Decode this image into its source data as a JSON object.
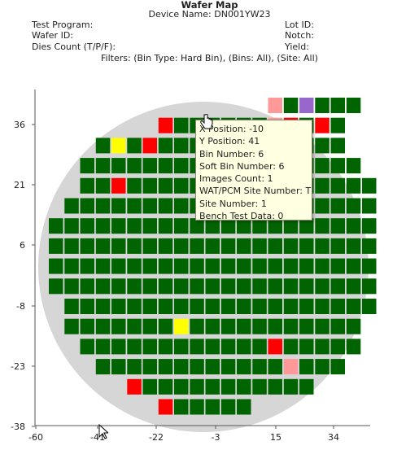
{
  "header": {
    "title": "Wafer Map",
    "device_name": "Device Name: DN001YW23",
    "test_program": "Test Program:",
    "wafer_id": "Wafer ID:",
    "dies_count": "Dies Count (T/P/F):",
    "lot_id": "Lot ID:",
    "notch": "Notch:",
    "yield": "Yield:",
    "filters": "Filters: (Bin Type: Hard Bin), (Bins: All), (Site: All)"
  },
  "tooltip": {
    "lines": [
      "X Position: -10",
      "Y Position: 41",
      "Bin Number: 6",
      "Soft Bin Number: 6",
      "Images Count: 1",
      "WAT/PCM Site Number: T",
      "Site Number: 1",
      "Bench Test Data: 0"
    ]
  },
  "colors": {
    "pass": "#006400",
    "fail": "#ff0000",
    "yellow": "#ffff00",
    "purple": "#9966cc",
    "pink": "#ff9999",
    "wafer": "#d6d6d6",
    "tooltip_bg": "#ffffe1"
  },
  "chart_data": {
    "type": "heatmap",
    "x_ticks": [
      "-60",
      "-41",
      "-22",
      "-3",
      "15",
      "34"
    ],
    "y_ticks": [
      "36",
      "21",
      "6",
      "-8",
      "-23",
      "-38"
    ],
    "die_colors": [
      "pass",
      "fail",
      "yellow",
      "purple",
      "pink"
    ],
    "rows": [
      {
        "y": 41,
        "start": 14,
        "count": 6,
        "special": {
          "0": "pink",
          "2": "purple"
        }
      },
      {
        "y": 36,
        "start": 7,
        "count": 12,
        "special": {
          "0": "fail",
          "7": "pink",
          "8": "fail",
          "10": "fail"
        }
      },
      {
        "y": 31,
        "start": 3,
        "count": 16,
        "special": {
          "1": "yellow",
          "3": "fail"
        }
      },
      {
        "y": 26,
        "start": 2,
        "count": 18,
        "special": {}
      },
      {
        "y": 21,
        "start": 2,
        "count": 19,
        "special": {
          "2": "fail"
        }
      },
      {
        "y": 16,
        "start": 1,
        "count": 20,
        "special": {}
      },
      {
        "y": 11,
        "start": 0,
        "count": 21,
        "special": {}
      },
      {
        "y": 6,
        "start": 0,
        "count": 21,
        "special": {}
      },
      {
        "y": 1,
        "start": 0,
        "count": 21,
        "special": {}
      },
      {
        "y": -3,
        "start": 0,
        "count": 21,
        "special": {}
      },
      {
        "y": -8,
        "start": 1,
        "count": 20,
        "special": {}
      },
      {
        "y": -13,
        "start": 1,
        "count": 19,
        "special": {
          "7": "yellow"
        }
      },
      {
        "y": -18,
        "start": 2,
        "count": 18,
        "special": {
          "12": "fail"
        }
      },
      {
        "y": -23,
        "start": 3,
        "count": 16,
        "special": {
          "12": "pink"
        }
      },
      {
        "y": -28,
        "start": 5,
        "count": 12,
        "special": {
          "0": "fail"
        }
      },
      {
        "y": -33,
        "start": 7,
        "count": 6,
        "special": {
          "0": "fail"
        }
      }
    ]
  }
}
